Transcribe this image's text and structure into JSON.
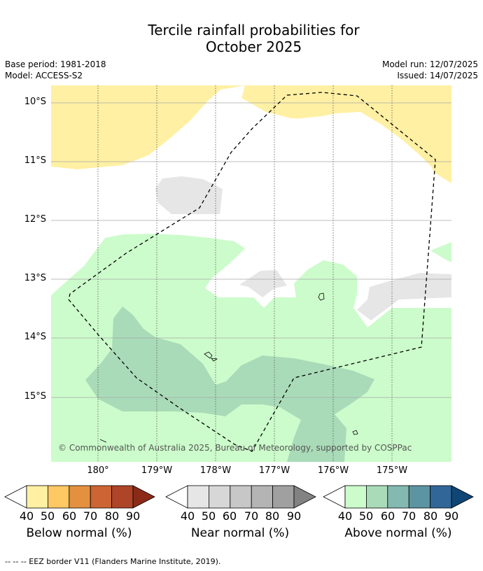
{
  "title": {
    "line1": "Tercile rainfall probabilities for",
    "line2": "October 2025"
  },
  "meta": {
    "base_period": "Base period: 1981-2018",
    "model": "Model: ACCESS-S2",
    "model_run": "Model run: 12/07/2025",
    "issued": "Issued: 14/07/2025"
  },
  "map": {
    "lat_labels": [
      "10°S",
      "11°S",
      "12°S",
      "13°S",
      "14°S",
      "15°S"
    ],
    "lon_labels": [
      "180°",
      "179°W",
      "178°W",
      "177°W",
      "176°W",
      "175°W"
    ],
    "copyright": "© Commonwealth of Australia 2025, Bureau of Meteorology, supported by COSPPac"
  },
  "legend": {
    "ticks": [
      "40",
      "50",
      "60",
      "70",
      "80",
      "90"
    ],
    "below": {
      "title": "Below normal (%)",
      "colors": [
        "#fff0a3",
        "#fec863",
        "#e3913f",
        "#cd6433",
        "#ae4428",
        "#8c2a18"
      ]
    },
    "near": {
      "title": "Near normal (%)",
      "colors": [
        "#e6e6e6",
        "#d7d7d7",
        "#c7c7c7",
        "#b4b4b4",
        "#a0a0a0",
        "#828282"
      ]
    },
    "above": {
      "title": "Above normal (%)",
      "colors": [
        "#ccfccb",
        "#a9dbb8",
        "#83b9b0",
        "#5c94a2",
        "#316698",
        "#0f4675"
      ]
    }
  },
  "footnote": "--  --  -- EEZ border V11 (Flanders Marine Institute, 2019)."
}
